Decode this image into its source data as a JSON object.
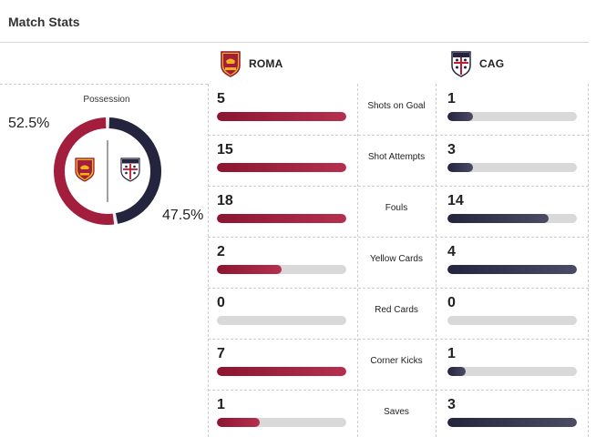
{
  "header": {
    "title": "Match Stats"
  },
  "teams": {
    "home": {
      "name": "ROMA",
      "color": "#a31d3d",
      "crest": "roma-crest-icon"
    },
    "away": {
      "name": "CAG",
      "color": "#25243f",
      "crest": "cagliari-crest-icon"
    }
  },
  "possession": {
    "label": "Possession",
    "home_pct": "52.5%",
    "away_pct": "47.5%",
    "home_value": 52.5,
    "away_value": 47.5
  },
  "stats": [
    {
      "label": "Shots on Goal",
      "home": "5",
      "away": "1",
      "home_fill": 1.0,
      "away_fill": 0.2
    },
    {
      "label": "Shot Attempts",
      "home": "15",
      "away": "3",
      "home_fill": 1.0,
      "away_fill": 0.2
    },
    {
      "label": "Fouls",
      "home": "18",
      "away": "14",
      "home_fill": 1.0,
      "away_fill": 0.78
    },
    {
      "label": "Yellow Cards",
      "home": "2",
      "away": "4",
      "home_fill": 0.5,
      "away_fill": 1.0
    },
    {
      "label": "Red Cards",
      "home": "0",
      "away": "0",
      "home_fill": 0.0,
      "away_fill": 0.0
    },
    {
      "label": "Corner Kicks",
      "home": "7",
      "away": "1",
      "home_fill": 1.0,
      "away_fill": 0.14
    },
    {
      "label": "Saves",
      "home": "1",
      "away": "3",
      "home_fill": 0.33,
      "away_fill": 1.0
    }
  ]
}
